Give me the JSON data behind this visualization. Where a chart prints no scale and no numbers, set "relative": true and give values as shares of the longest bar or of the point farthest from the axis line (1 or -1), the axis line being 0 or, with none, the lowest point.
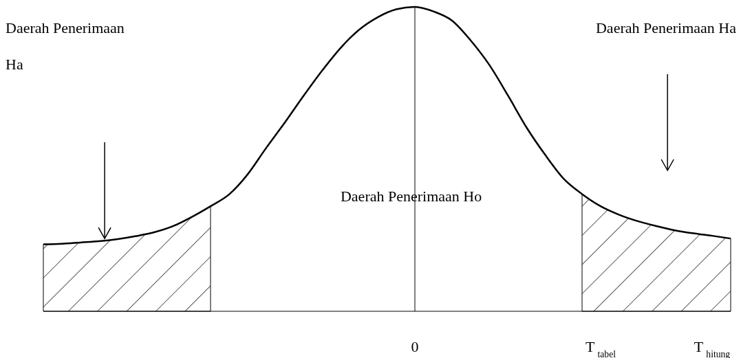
{
  "chart_data": {
    "type": "line",
    "relative": true,
    "categories": [
      null,
      null,
      null,
      null,
      null,
      null,
      null,
      null,
      null,
      null,
      null,
      null,
      null,
      null,
      null,
      null,
      null,
      null,
      null,
      null,
      "0",
      null,
      null,
      null,
      null,
      null,
      null,
      null,
      null,
      null,
      "T$_{tabel}$",
      null,
      null,
      null,
      null,
      null,
      "T$_{hitung}$",
      null
    ],
    "series": [
      {
        "color": "#000000",
        "values": [
          0.22,
          0.222,
          0.226,
          0.23,
          0.237,
          0.247,
          0.26,
          0.28,
          0.31,
          0.345,
          0.384,
          0.45,
          0.537,
          0.62,
          0.707,
          0.79,
          0.865,
          0.925,
          0.966,
          0.992,
          1,
          0.985,
          0.955,
          0.89,
          0.81,
          0.71,
          0.605,
          0.515,
          0.436,
          0.385,
          0.345,
          0.317,
          0.296,
          0.28,
          0.266,
          0.256,
          0.248,
          0.239
        ]
      },
      {
        "type": "area",
        "color": "#000000",
        "values": [
          0.22,
          0.222,
          0.226,
          0.23,
          0.237,
          0.247,
          0.26,
          0.28,
          0.31,
          0.345,
          null,
          null,
          null,
          null,
          null,
          null,
          null,
          null,
          null,
          null,
          null,
          null,
          null,
          null,
          null,
          null,
          null,
          null,
          null,
          null,
          null,
          null,
          null,
          null,
          null,
          null,
          null,
          null
        ]
      },
      {
        "type": "area",
        "color": "#000000",
        "values": [
          null,
          null,
          null,
          null,
          null,
          null,
          null,
          null,
          null,
          null,
          null,
          null,
          null,
          null,
          null,
          null,
          null,
          null,
          null,
          null,
          null,
          null,
          null,
          null,
          null,
          null,
          null,
          null,
          null,
          0.385,
          0.345,
          0.317,
          0.296,
          0.28,
          0.266,
          0.256,
          0.248,
          0.239
        ]
      }
    ],
    "ref_lines": [
      {
        "axis": "x",
        "value": "0",
        "color": "#000000"
      }
    ],
    "annotations": [
      "Daerah Penerimaan Ha",
      "Daerah Penerimaan Ha",
      "Daerah Penerimaan Ho"
    ],
    "line_style": "solid"
  }
}
